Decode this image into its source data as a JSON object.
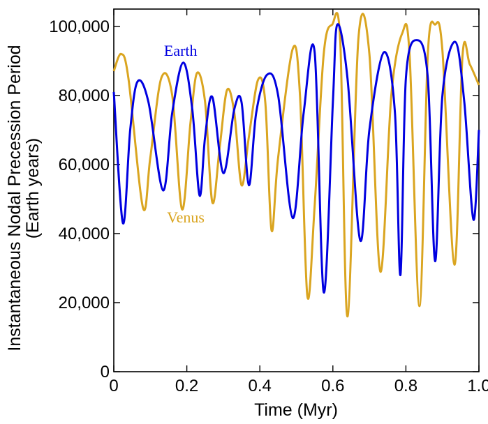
{
  "chart_data": {
    "type": "line",
    "title": "",
    "xlabel": "Time (Myr)",
    "ylabel_lines": [
      "Instantaneous Nodal Precession Period",
      "(Earth years)"
    ],
    "xlim": [
      0,
      1.0
    ],
    "ylim": [
      0,
      105000
    ],
    "xticks": [
      0,
      0.2,
      0.4,
      0.6,
      0.8,
      1.0
    ],
    "xtick_labels": [
      "0",
      "0.2",
      "0.4",
      "0.6",
      "0.8",
      "1.0"
    ],
    "yticks": [
      0,
      20000,
      40000,
      60000,
      80000,
      100000
    ],
    "ytick_labels": [
      "0",
      "20,000",
      "40,000",
      "60,000",
      "80,000",
      "100,000"
    ],
    "grid": false,
    "series": [
      {
        "name": "Venus",
        "color": "#DAA520",
        "x": [
          0.0,
          0.02,
          0.04,
          0.08,
          0.1,
          0.13,
          0.16,
          0.187,
          0.21,
          0.228,
          0.25,
          0.27,
          0.29,
          0.31,
          0.33,
          0.35,
          0.37,
          0.395,
          0.415,
          0.432,
          0.45,
          0.49,
          0.51,
          0.53,
          0.55,
          0.575,
          0.598,
          0.62,
          0.64,
          0.67,
          0.7,
          0.73,
          0.76,
          0.79,
          0.81,
          0.837,
          0.86,
          0.88,
          0.9,
          0.933,
          0.955,
          0.975,
          1.0
        ],
        "values": [
          87000,
          92000,
          85000,
          47500,
          62000,
          85000,
          80000,
          47000,
          72000,
          86500,
          78000,
          49000,
          65000,
          81500,
          75000,
          54000,
          68000,
          84500,
          78000,
          41000,
          62000,
          93500,
          80000,
          22000,
          48000,
          92000,
          100500,
          96000,
          16000,
          96500,
          92000,
          29000,
          80000,
          98000,
          92000,
          19000,
          92000,
          100500,
          93000,
          31000,
          91500,
          89000,
          83000
        ]
      },
      {
        "name": "Earth",
        "color": "#0000E0",
        "x": [
          0.0,
          0.025,
          0.045,
          0.065,
          0.095,
          0.135,
          0.16,
          0.19,
          0.215,
          0.235,
          0.25,
          0.27,
          0.3,
          0.33,
          0.35,
          0.37,
          0.39,
          0.42,
          0.45,
          0.49,
          0.52,
          0.55,
          0.575,
          0.6,
          0.612,
          0.64,
          0.675,
          0.7,
          0.74,
          0.77,
          0.785,
          0.8,
          0.83,
          0.86,
          0.88,
          0.9,
          0.935,
          0.96,
          0.985,
          1.0
        ],
        "values": [
          81000,
          43000,
          70000,
          84000,
          78000,
          52500,
          75000,
          89500,
          76000,
          51000,
          68000,
          79500,
          57500,
          76000,
          78000,
          54000,
          75000,
          86000,
          80000,
          44500,
          75000,
          92500,
          23000,
          78000,
          100500,
          85000,
          38000,
          70000,
          92500,
          75000,
          28000,
          85000,
          96000,
          85000,
          32000,
          80000,
          95500,
          78000,
          44000,
          70000
        ]
      }
    ],
    "annotations": [
      {
        "text": "Earth",
        "series": "Earth",
        "x": 0.183,
        "y": 91500
      },
      {
        "text": "Venus",
        "series": "Venus",
        "x": 0.197,
        "y": 43200
      }
    ]
  }
}
